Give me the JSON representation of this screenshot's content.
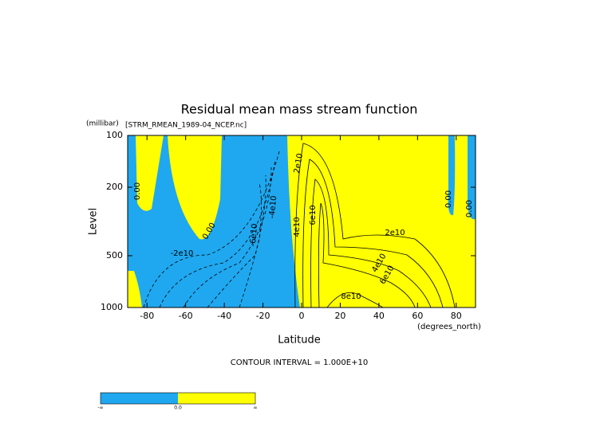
{
  "chart_data": {
    "type": "contour",
    "title": "Residual mean mass stream function",
    "subtitle": "[STRM_RMEAN_1989-04_NCEP.nc]",
    "y_units": "(millibar)",
    "y_label": "Level",
    "x_label": "Latitude",
    "x_units": "(degrees_north)",
    "footnote": "CONTOUR INTERVAL = 1.000E+10",
    "xlim": [
      -90,
      90
    ],
    "xticks": [
      -80,
      -60,
      -40,
      -20,
      0,
      20,
      40,
      60,
      80
    ],
    "ylim": [
      1000,
      100
    ],
    "yticks": [
      100,
      200,
      500,
      1000
    ],
    "log_y": true,
    "colors": [
      "#1fa8f0",
      "#ffff00"
    ],
    "annotations": [
      "0.00",
      "0.00",
      "2e10",
      "6e10",
      "4e10",
      "2e10",
      "4e10",
      "6e10",
      "8e10",
      "-2e10",
      "-6e10",
      "-4e10",
      "0.00",
      "0.00"
    ],
    "colorbar_labels": [
      "-∞",
      "0.0",
      "∞"
    ]
  }
}
